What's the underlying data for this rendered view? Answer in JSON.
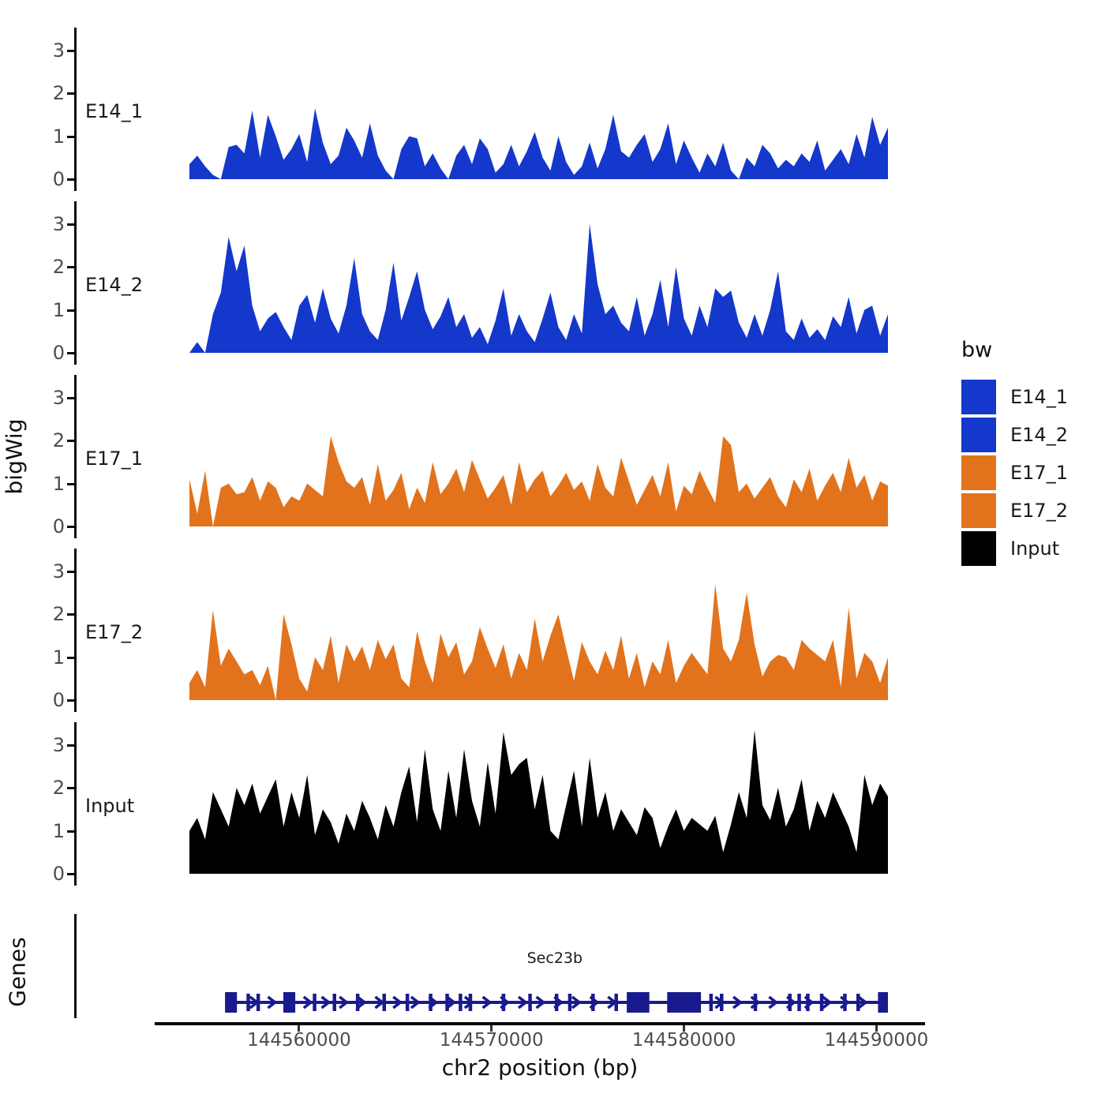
{
  "chart_data": {
    "type": "area",
    "title": "",
    "xlabel": "chr2 position (bp)",
    "ylabel": "bigWig",
    "genome_region": "chr2:144554300-144590600",
    "x_range": [
      144554300,
      144590600
    ],
    "x_ticks": [
      144560000,
      144570000,
      144580000,
      144590000
    ],
    "x_tick_labels": [
      "144560000",
      "144570000",
      "144580000",
      "144590000"
    ],
    "y_ticks": [
      0,
      1,
      2,
      3
    ],
    "ylim_per_track": [
      0,
      3.5
    ],
    "grid": false,
    "legend_position": "right",
    "series": [
      {
        "name": "E14_1",
        "color": "#1437CC",
        "values": [
          0.35,
          0.55,
          0.3,
          0.1,
          0,
          0.75,
          0.8,
          0.6,
          1.6,
          0.5,
          1.5,
          1.0,
          0.45,
          0.7,
          1.05,
          0.4,
          1.65,
          0.85,
          0.35,
          0.55,
          1.2,
          0.9,
          0.5,
          1.3,
          0.55,
          0.2,
          0,
          0.7,
          1.0,
          0.95,
          0.3,
          0.6,
          0.25,
          0,
          0.55,
          0.8,
          0.35,
          0.95,
          0.7,
          0.15,
          0.35,
          0.8,
          0.3,
          0.65,
          1.1,
          0.5,
          0.2,
          1.0,
          0.4,
          0.1,
          0.3,
          0.85,
          0.25,
          0.7,
          1.5,
          0.65,
          0.5,
          0.8,
          1.05,
          0.4,
          0.7,
          1.3,
          0.35,
          0.9,
          0.5,
          0.15,
          0.6,
          0.3,
          0.85,
          0.2,
          0,
          0.5,
          0.3,
          0.8,
          0.6,
          0.25,
          0.45,
          0.3,
          0.6,
          0.4,
          0.9,
          0.2,
          0.45,
          0.7,
          0.35,
          1.05,
          0.5,
          1.45,
          0.8,
          1.2
        ]
      },
      {
        "name": "E14_2",
        "color": "#1437CC",
        "values": [
          0,
          0.25,
          0,
          0.9,
          1.4,
          2.7,
          1.9,
          2.5,
          1.1,
          0.5,
          0.8,
          0.95,
          0.6,
          0.3,
          1.1,
          1.35,
          0.7,
          1.5,
          0.8,
          0.45,
          1.1,
          2.2,
          0.9,
          0.5,
          0.3,
          1.0,
          2.1,
          0.75,
          1.3,
          1.9,
          1.0,
          0.55,
          0.85,
          1.3,
          0.6,
          0.9,
          0.35,
          0.6,
          0.2,
          0.75,
          1.5,
          0.4,
          0.9,
          0.5,
          0.25,
          0.8,
          1.4,
          0.6,
          0.3,
          0.9,
          0.45,
          3.0,
          1.6,
          0.9,
          1.1,
          0.7,
          0.5,
          1.3,
          0.4,
          0.9,
          1.7,
          0.6,
          2.0,
          0.8,
          0.4,
          1.1,
          0.6,
          1.5,
          1.3,
          1.45,
          0.7,
          0.35,
          0.9,
          0.4,
          1.0,
          1.9,
          0.5,
          0.3,
          0.8,
          0.35,
          0.55,
          0.3,
          0.85,
          0.6,
          1.3,
          0.45,
          1.0,
          1.1,
          0.4,
          0.9
        ]
      },
      {
        "name": "E17_1",
        "color": "#E2731C",
        "values": [
          1.1,
          0.3,
          1.3,
          0,
          0.9,
          1.0,
          0.75,
          0.8,
          1.15,
          0.6,
          1.05,
          0.9,
          0.45,
          0.7,
          0.6,
          1.0,
          0.85,
          0.7,
          2.1,
          1.5,
          1.05,
          0.9,
          1.15,
          0.5,
          1.45,
          0.6,
          0.85,
          1.25,
          0.4,
          0.9,
          0.55,
          1.5,
          0.75,
          1.0,
          1.35,
          0.8,
          1.55,
          1.1,
          0.65,
          0.9,
          1.2,
          0.5,
          1.5,
          0.8,
          1.1,
          1.3,
          0.7,
          0.95,
          1.25,
          0.85,
          1.05,
          0.6,
          1.45,
          0.9,
          0.7,
          1.6,
          1.05,
          0.5,
          0.85,
          1.2,
          0.7,
          1.5,
          0.35,
          0.95,
          0.75,
          1.3,
          0.9,
          0.55,
          2.1,
          1.9,
          0.8,
          1.0,
          0.65,
          0.9,
          1.15,
          0.7,
          0.45,
          1.1,
          0.8,
          1.35,
          0.6,
          0.95,
          1.25,
          0.8,
          1.6,
          0.9,
          1.2,
          0.6,
          1.05,
          0.95
        ]
      },
      {
        "name": "E17_2",
        "color": "#E2731C",
        "values": [
          0.4,
          0.7,
          0.3,
          2.1,
          0.8,
          1.2,
          0.9,
          0.6,
          0.7,
          0.35,
          0.8,
          0,
          2.0,
          1.3,
          0.5,
          0.2,
          1.0,
          0.7,
          1.5,
          0.4,
          1.3,
          0.9,
          1.25,
          0.7,
          1.4,
          0.95,
          1.3,
          0.5,
          0.3,
          1.6,
          0.9,
          0.4,
          1.55,
          1.0,
          1.35,
          0.6,
          0.9,
          1.7,
          1.2,
          0.75,
          1.3,
          0.5,
          1.1,
          0.7,
          1.9,
          0.9,
          1.5,
          2.0,
          1.2,
          0.45,
          1.35,
          0.9,
          0.6,
          1.15,
          0.7,
          1.5,
          0.5,
          1.1,
          0.3,
          0.9,
          0.6,
          1.4,
          0.4,
          0.8,
          1.1,
          0.85,
          0.6,
          2.7,
          1.2,
          0.9,
          1.4,
          2.5,
          1.3,
          0.55,
          0.9,
          1.05,
          1.0,
          0.7,
          1.4,
          1.2,
          1.05,
          0.9,
          1.4,
          0.3,
          2.15,
          0.5,
          1.1,
          0.9,
          0.4,
          1.0
        ]
      },
      {
        "name": "Input",
        "color": "#000000",
        "values": [
          1.0,
          1.3,
          0.8,
          1.9,
          1.5,
          1.1,
          2.0,
          1.6,
          2.1,
          1.4,
          1.8,
          2.2,
          1.1,
          1.9,
          1.3,
          2.3,
          0.9,
          1.5,
          1.2,
          0.7,
          1.4,
          1.0,
          1.7,
          1.3,
          0.8,
          1.6,
          1.1,
          1.9,
          2.5,
          1.2,
          2.9,
          1.5,
          1.0,
          2.4,
          1.3,
          2.9,
          1.7,
          1.1,
          2.6,
          1.4,
          3.3,
          2.3,
          2.55,
          2.7,
          1.5,
          2.3,
          1.0,
          0.8,
          1.6,
          2.4,
          1.1,
          2.7,
          1.3,
          1.9,
          1.0,
          1.5,
          1.2,
          0.9,
          1.55,
          1.3,
          0.6,
          1.1,
          1.5,
          1.0,
          1.3,
          1.15,
          1.0,
          1.35,
          0.5,
          1.15,
          1.9,
          1.3,
          3.35,
          1.6,
          1.25,
          2.0,
          1.1,
          1.5,
          2.2,
          1.0,
          1.7,
          1.3,
          1.9,
          1.5,
          1.1,
          0.5,
          2.3,
          1.6,
          2.1,
          1.8
        ]
      }
    ],
    "gene_track": {
      "axis_label": "Genes",
      "gene": {
        "name": "Sec23b",
        "chromosome": "chr2",
        "strand": "right",
        "color": "#1A1A8F",
        "start_frac": 0.051,
        "end_frac": 1.0,
        "label_frac": 0.523,
        "boxes": [
          [
            0.0,
            0.018
          ],
          [
            0.088,
            0.106
          ],
          [
            0.606,
            0.64
          ],
          [
            0.667,
            0.718
          ],
          [
            0.985,
            1.0
          ]
        ],
        "bars": [
          0.035,
          0.05,
          0.135,
          0.165,
          0.2,
          0.24,
          0.275,
          0.31,
          0.335,
          0.355,
          0.37,
          0.42,
          0.46,
          0.5,
          0.52,
          0.555,
          0.59,
          0.733,
          0.749,
          0.8,
          0.852,
          0.866,
          0.879,
          0.9,
          0.935,
          0.955
        ],
        "arrow_step_frac": 0.027
      }
    }
  },
  "legend": {
    "title": "bw",
    "items": [
      {
        "label": "E14_1",
        "color": "#1437CC"
      },
      {
        "label": "E14_2",
        "color": "#1437CC"
      },
      {
        "label": "E17_1",
        "color": "#E2731C"
      },
      {
        "label": "E17_2",
        "color": "#E2731C"
      },
      {
        "label": "Input",
        "color": "#000000"
      }
    ]
  },
  "axes": {
    "x_title": "chr2 position (bp)",
    "y_title": "bigWig",
    "genes_title": "Genes"
  }
}
